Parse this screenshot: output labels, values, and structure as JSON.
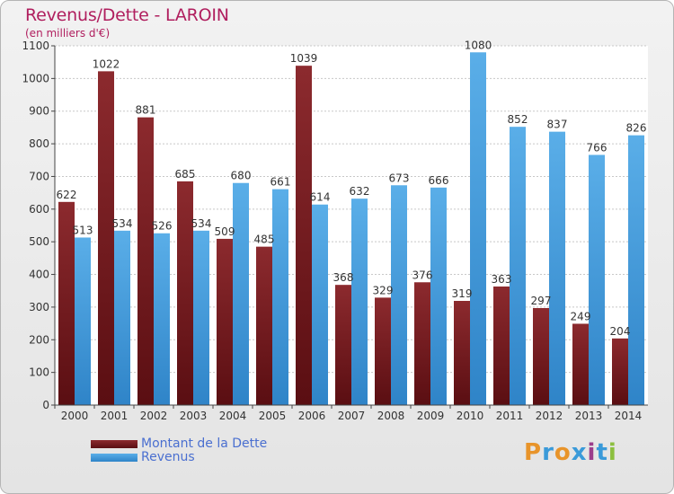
{
  "header": {
    "title": "Revenus/Dette - LAROIN",
    "subtitle": "(en milliers d'€)"
  },
  "legend": {
    "debt_label": "Montant de la Dette",
    "revenue_label": "Revenus"
  },
  "logo": {
    "text": "Proxiti",
    "colors": [
      "#e8942a",
      "#3a9ad9",
      "#e8942a",
      "#3a9ad9",
      "#9c3d8c",
      "#3a9ad9",
      "#8cbf3f"
    ]
  },
  "chart_data": {
    "type": "bar",
    "title": "Revenus/Dette - LAROIN",
    "subtitle": "(en milliers d'€)",
    "categories": [
      "2000",
      "2001",
      "2002",
      "2003",
      "2004",
      "2005",
      "2006",
      "2007",
      "2008",
      "2009",
      "2010",
      "2011",
      "2012",
      "2013",
      "2014"
    ],
    "series": [
      {
        "name": "Montant de la Dette",
        "color": "#7b2226",
        "values": [
          622,
          1022,
          881,
          685,
          509,
          485,
          1039,
          368,
          329,
          376,
          319,
          363,
          297,
          249,
          204
        ]
      },
      {
        "name": "Revenus",
        "color": "#4a9fe0",
        "values": [
          513,
          534,
          526,
          534,
          680,
          661,
          614,
          632,
          673,
          666,
          1080,
          852,
          837,
          766,
          826
        ]
      }
    ],
    "ylim": [
      0,
      1100
    ],
    "yticks": [
      0,
      100,
      200,
      300,
      400,
      500,
      600,
      700,
      800,
      900,
      1000,
      1100
    ],
    "grid": true,
    "legend_position": "bottom-left"
  }
}
